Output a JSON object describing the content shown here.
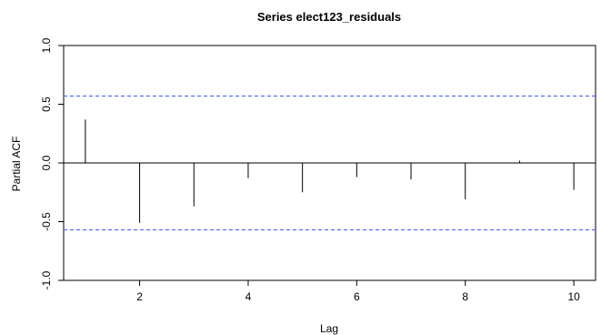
{
  "chart_data": {
    "type": "bar",
    "title": "Series  elect123_residuals",
    "xlabel": "Lag",
    "ylabel": "Partial ACF",
    "xlim": [
      0.6,
      10.4
    ],
    "ylim": [
      -1.0,
      1.0
    ],
    "x_ticks": [
      2,
      4,
      6,
      8,
      10
    ],
    "y_ticks": [
      -1.0,
      -0.5,
      0.0,
      0.5,
      1.0
    ],
    "x_tick_labels": [
      "2",
      "4",
      "6",
      "8",
      "10"
    ],
    "y_tick_labels": [
      "-1.0",
      "-0.5",
      "0.0",
      "0.5",
      "1.0"
    ],
    "confidence_bounds": [
      0.57,
      -0.57
    ],
    "grid": false,
    "series": [
      {
        "x": [
          1,
          2,
          3,
          4,
          5,
          6,
          7,
          8,
          9,
          10
        ],
        "values": [
          0.37,
          -0.51,
          -0.37,
          -0.13,
          -0.25,
          -0.12,
          -0.14,
          -0.31,
          0.02,
          -0.23
        ]
      }
    ],
    "colors": {
      "bars": "#000000",
      "axis": "#000000",
      "zero_line": "#000000",
      "confidence": "#3f57ff"
    }
  }
}
